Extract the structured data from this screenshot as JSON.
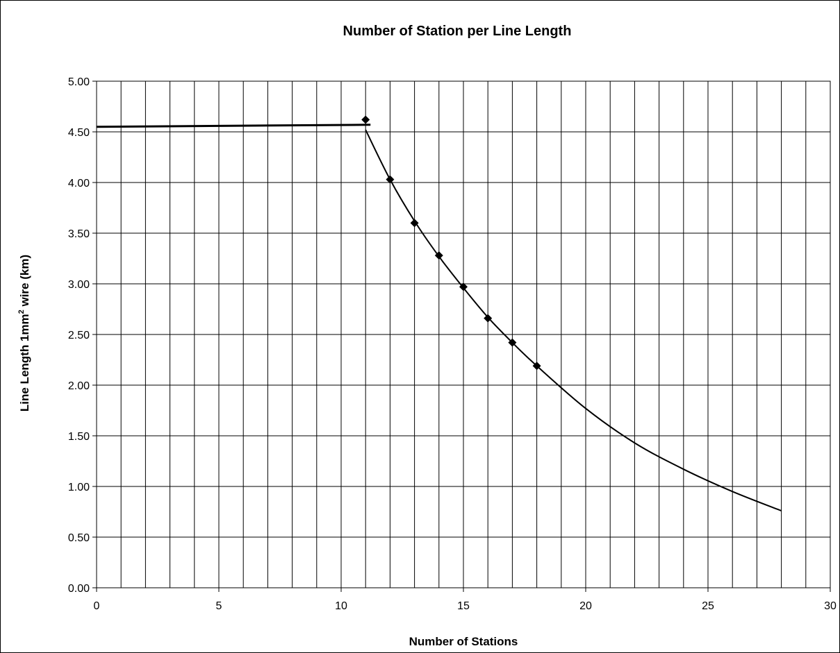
{
  "chart_data": {
    "type": "scatter",
    "title": "Number of Station per Line Length",
    "xlabel": "Number of Stations",
    "ylabel": {
      "prefix": "Line Length 1mm",
      "superscript": "2",
      "suffix": " wire (km)"
    },
    "xlim": [
      0,
      30
    ],
    "ylim": [
      0,
      5
    ],
    "x_ticks": [
      "0",
      "5",
      "10",
      "15",
      "20",
      "25",
      "30"
    ],
    "y_ticks": [
      "0.00",
      "0.50",
      "1.00",
      "1.50",
      "2.00",
      "2.50",
      "3.00",
      "3.50",
      "4.00",
      "4.50",
      "5.00"
    ],
    "grid": {
      "x_step": 1,
      "y_step": 0.5,
      "visible": true
    },
    "legend": "none",
    "series": [
      {
        "kind": "markers",
        "marker": "diamond",
        "points": [
          {
            "x": 11,
            "y": 4.62
          },
          {
            "x": 12,
            "y": 4.03
          },
          {
            "x": 13,
            "y": 3.6
          },
          {
            "x": 14,
            "y": 3.28
          },
          {
            "x": 15,
            "y": 2.97
          },
          {
            "x": 16,
            "y": 2.66
          },
          {
            "x": 17,
            "y": 2.42
          },
          {
            "x": 18,
            "y": 2.19
          }
        ]
      },
      {
        "kind": "flat-line",
        "points": [
          {
            "x": 0,
            "y": 4.55
          },
          {
            "x": 11.2,
            "y": 4.57
          }
        ]
      },
      {
        "kind": "curve",
        "points": [
          {
            "x": 11,
            "y": 4.52
          },
          {
            "x": 12,
            "y": 4.03
          },
          {
            "x": 13,
            "y": 3.62
          },
          {
            "x": 14,
            "y": 3.27
          },
          {
            "x": 15,
            "y": 2.96
          },
          {
            "x": 16,
            "y": 2.67
          },
          {
            "x": 17,
            "y": 2.42
          },
          {
            "x": 18,
            "y": 2.19
          },
          {
            "x": 20,
            "y": 1.77
          },
          {
            "x": 22,
            "y": 1.43
          },
          {
            "x": 24,
            "y": 1.17
          },
          {
            "x": 26,
            "y": 0.95
          },
          {
            "x": 28,
            "y": 0.76
          }
        ]
      }
    ],
    "colors": {
      "line": "#000000",
      "grid": "#000000",
      "background": "#ffffff"
    }
  }
}
